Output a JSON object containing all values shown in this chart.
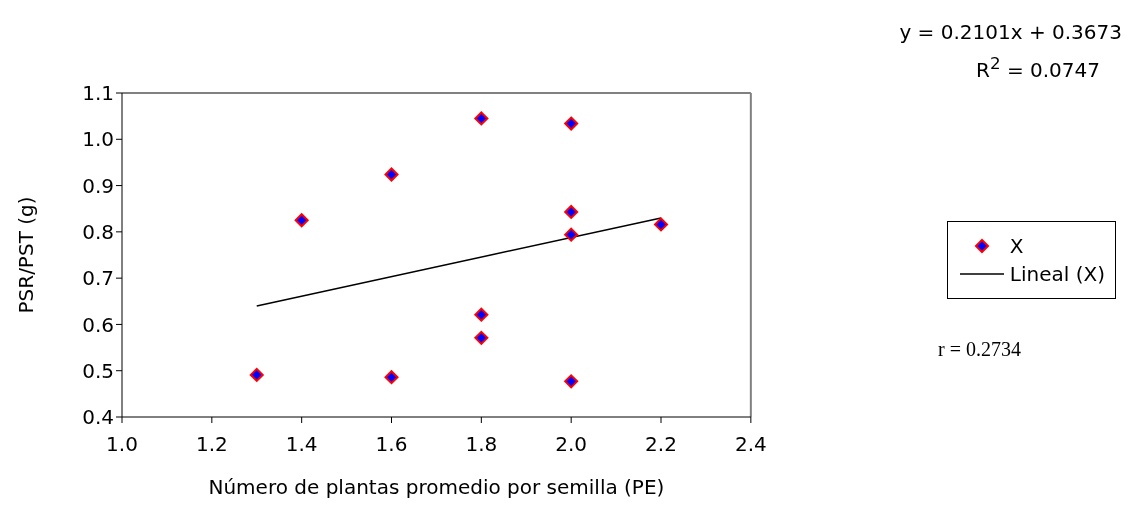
{
  "chart_data": {
    "type": "scatter",
    "xlabel": "Número de plantas promedio por semilla (PE)",
    "ylabel": "PSR/PST (g)",
    "xlim": [
      1.0,
      2.4
    ],
    "ylim": [
      0.4,
      1.1
    ],
    "xticks": [
      {
        "value": 1.0,
        "label": "1.0"
      },
      {
        "value": 1.2,
        "label": "1.2"
      },
      {
        "value": 1.4,
        "label": "1.4"
      },
      {
        "value": 1.6,
        "label": "1.6"
      },
      {
        "value": 1.8,
        "label": "1.8"
      },
      {
        "value": 2.0,
        "label": "2.0"
      },
      {
        "value": 2.2,
        "label": "2.2"
      },
      {
        "value": 2.4,
        "label": "2.4"
      }
    ],
    "yticks": [
      {
        "value": 0.4,
        "label": "0.4"
      },
      {
        "value": 0.5,
        "label": "0.5"
      },
      {
        "value": 0.6,
        "label": "0.6"
      },
      {
        "value": 0.7,
        "label": "0.7"
      },
      {
        "value": 0.8,
        "label": "0.8"
      },
      {
        "value": 0.9,
        "label": "0.9"
      },
      {
        "value": 1.0,
        "label": "1.0"
      },
      {
        "value": 1.1,
        "label": "1.1"
      }
    ],
    "series": [
      {
        "name": "X",
        "color": "#0000ff",
        "marker": "diamond",
        "x": [
          1.3,
          1.4,
          1.6,
          1.6,
          1.8,
          1.8,
          1.8,
          2.0,
          2.0,
          2.0,
          2.0,
          2.2
        ],
        "values": [
          0.491,
          0.825,
          0.924,
          0.486,
          1.045,
          0.621,
          0.571,
          1.034,
          0.843,
          0.794,
          0.477,
          0.816
        ]
      },
      {
        "name": "Lineal (X)",
        "type": "line",
        "color": "#000000",
        "line_style": "solid",
        "x": [
          1.3,
          2.2
        ],
        "values": [
          0.64,
          0.83
        ]
      }
    ],
    "legend": "right",
    "annotations": [
      "y = 0.2101x + 0.3673",
      "R$^{2}$ = 0.0747",
      "r = 0.2734"
    ]
  }
}
